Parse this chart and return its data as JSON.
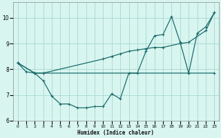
{
  "xlabel": "Humidex (Indice chaleur)",
  "bg_color": "#d8f5f0",
  "grid_color": "#a8d8d0",
  "line_color": "#1a6b6b",
  "xlim": [
    -0.5,
    23.5
  ],
  "ylim": [
    6,
    10.6
  ],
  "yticks": [
    6,
    7,
    8,
    9,
    10
  ],
  "xticks": [
    0,
    1,
    2,
    3,
    4,
    5,
    6,
    7,
    8,
    9,
    10,
    11,
    12,
    13,
    14,
    15,
    16,
    17,
    18,
    19,
    20,
    21,
    22,
    23
  ],
  "line1_x": [
    0,
    1,
    2,
    3,
    4,
    5,
    6,
    7,
    8,
    9,
    10,
    11,
    12,
    13,
    14,
    15,
    16,
    17,
    18,
    19,
    20,
    21,
    22,
    23
  ],
  "line1_y": [
    8.25,
    7.9,
    7.85,
    7.55,
    6.95,
    6.65,
    6.65,
    6.5,
    6.5,
    6.55,
    6.55,
    7.05,
    6.85,
    7.85,
    7.85,
    8.7,
    9.3,
    9.35,
    10.05,
    9.05,
    7.85,
    9.4,
    9.65,
    10.2
  ],
  "line2_x": [
    0,
    2,
    3,
    10,
    11,
    12,
    13,
    14,
    15,
    16,
    17,
    19,
    20,
    22,
    23
  ],
  "line2_y": [
    8.25,
    7.85,
    7.85,
    8.4,
    8.5,
    8.6,
    8.7,
    8.75,
    8.8,
    8.85,
    8.85,
    9.0,
    9.05,
    9.5,
    10.2
  ],
  "line3_x": [
    0,
    2,
    3,
    20,
    23
  ],
  "line3_y": [
    8.25,
    7.85,
    7.85,
    7.85,
    7.85
  ]
}
